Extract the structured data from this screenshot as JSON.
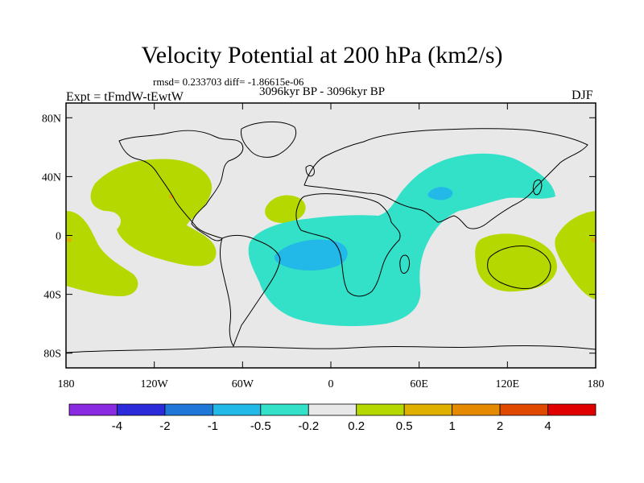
{
  "title": "Velocity Potential at 200 hPa (km2/s)",
  "stats_line": "rmsd= 0.233703 diff= -1.86615e-06",
  "period_line": "3096kyr BP - 3096kyr BP",
  "experiment_label": "Expt = tFmdW-tEwtW",
  "season_label": "DJF",
  "map": {
    "lon_range": [
      -180,
      180
    ],
    "lat_range": [
      -90,
      90
    ],
    "x_ticks": [
      {
        "lon": -180,
        "label": "180"
      },
      {
        "lon": -120,
        "label": "120W"
      },
      {
        "lon": -60,
        "label": "60W"
      },
      {
        "lon": 0,
        "label": "0"
      },
      {
        "lon": 60,
        "label": "60E"
      },
      {
        "lon": 120,
        "label": "120E"
      },
      {
        "lon": 180,
        "label": "180"
      }
    ],
    "y_ticks": [
      {
        "lat": 80,
        "label": "80N"
      },
      {
        "lat": 40,
        "label": "40N"
      },
      {
        "lat": 0,
        "label": "0"
      },
      {
        "lat": -40,
        "label": "40S"
      },
      {
        "lat": -80,
        "label": "80S"
      }
    ],
    "background_color": "#e8e8e8"
  },
  "colorbar": {
    "colors": [
      "#8a2be2",
      "#2b2bd9",
      "#1f78d8",
      "#22b8e8",
      "#33e0c8",
      "#e8e8e8",
      "#b5d800",
      "#e0b000",
      "#e58a00",
      "#e04a00",
      "#e00000"
    ],
    "labels": [
      "-4",
      "-2",
      "-1",
      "-0.5",
      "-0.2",
      "0.2",
      "0.5",
      "1",
      "2",
      "4"
    ]
  }
}
